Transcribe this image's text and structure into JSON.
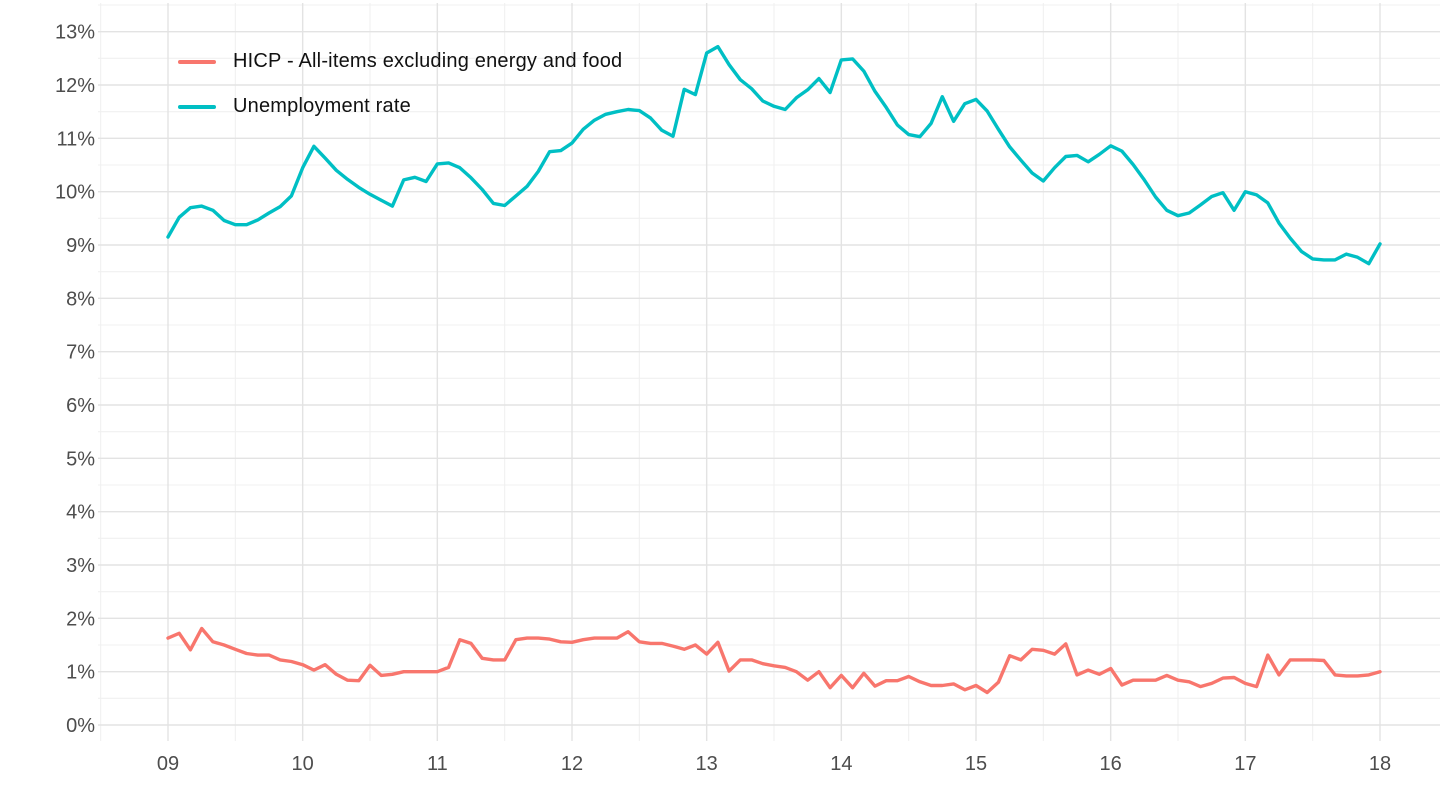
{
  "chart_data": {
    "type": "line",
    "title": "",
    "xlabel": "",
    "ylabel": "",
    "x_axis": {
      "freq": "monthly",
      "start": "2009-01",
      "end": "2018-01",
      "tick_labels": [
        "09",
        "10",
        "11",
        "12",
        "13",
        "14",
        "15",
        "16",
        "17",
        "18"
      ],
      "tick_month_index": [
        0,
        12,
        24,
        36,
        48,
        60,
        72,
        84,
        96,
        108
      ]
    },
    "y_axis": {
      "tick_labels": [
        "0%",
        "1%",
        "2%",
        "3%",
        "4%",
        "5%",
        "6%",
        "7%",
        "8%",
        "9%",
        "10%",
        "11%",
        "12%",
        "13%"
      ],
      "tick_values": [
        0,
        1,
        2,
        3,
        4,
        5,
        6,
        7,
        8,
        9,
        10,
        11,
        12,
        13
      ],
      "ylim": [
        0,
        13.5
      ],
      "minor_grid_step": 0.5
    },
    "grid": "on",
    "legend_position": "top-left-inside",
    "colors": {
      "grid_major": "#e3e3e3",
      "grid_minor": "#f0f0f0",
      "axis_text": "#4d4d4d",
      "legend_text": "#111111"
    },
    "series": [
      {
        "name": "HICP - All-items excluding energy and food",
        "color": "#F8766D",
        "values": [
          1.63,
          1.72,
          1.41,
          1.81,
          1.56,
          1.5,
          1.42,
          1.34,
          1.31,
          1.31,
          1.22,
          1.19,
          1.13,
          1.03,
          1.13,
          0.95,
          0.84,
          0.83,
          1.12,
          0.93,
          0.95,
          1.0,
          1.0,
          1.0,
          1.0,
          1.08,
          1.6,
          1.53,
          1.25,
          1.22,
          1.22,
          1.6,
          1.63,
          1.63,
          1.61,
          1.56,
          1.55,
          1.6,
          1.63,
          1.63,
          1.63,
          1.75,
          1.56,
          1.53,
          1.53,
          1.48,
          1.42,
          1.5,
          1.33,
          1.55,
          1.01,
          1.22,
          1.22,
          1.15,
          1.11,
          1.08,
          1.0,
          0.84,
          1.0,
          0.7,
          0.93,
          0.7,
          0.97,
          0.73,
          0.83,
          0.83,
          0.91,
          0.81,
          0.74,
          0.74,
          0.77,
          0.66,
          0.74,
          0.61,
          0.8,
          1.3,
          1.22,
          1.42,
          1.4,
          1.33,
          1.52,
          0.94,
          1.03,
          0.95,
          1.06,
          0.75,
          0.84,
          0.84,
          0.84,
          0.93,
          0.84,
          0.81,
          0.72,
          0.78,
          0.88,
          0.89,
          0.78,
          0.72,
          1.31,
          0.94,
          1.22,
          1.22,
          1.22,
          1.21,
          0.94,
          0.92,
          0.92,
          0.94,
          1.0
        ]
      },
      {
        "name": "Unemployment rate",
        "color": "#00BFC4",
        "values": [
          9.15,
          9.52,
          9.7,
          9.73,
          9.65,
          9.46,
          9.38,
          9.38,
          9.47,
          9.6,
          9.72,
          9.92,
          10.45,
          10.85,
          10.63,
          10.4,
          10.23,
          10.08,
          9.95,
          9.84,
          9.73,
          10.22,
          10.27,
          10.19,
          10.52,
          10.54,
          10.45,
          10.26,
          10.04,
          9.78,
          9.74,
          9.92,
          10.1,
          10.38,
          10.75,
          10.77,
          10.91,
          11.17,
          11.34,
          11.45,
          11.5,
          11.54,
          11.52,
          11.38,
          11.15,
          11.04,
          11.92,
          11.82,
          12.6,
          12.72,
          12.38,
          12.1,
          11.93,
          11.7,
          11.6,
          11.54,
          11.76,
          11.91,
          12.12,
          11.86,
          12.47,
          12.49,
          12.26,
          11.88,
          11.58,
          11.25,
          11.07,
          11.03,
          11.28,
          11.78,
          11.32,
          11.65,
          11.73,
          11.51,
          11.17,
          10.84,
          10.59,
          10.35,
          10.2,
          10.45,
          10.66,
          10.68,
          10.56,
          10.7,
          10.86,
          10.76,
          10.51,
          10.22,
          9.9,
          9.65,
          9.55,
          9.6,
          9.75,
          9.91,
          9.98,
          9.65,
          10.0,
          9.94,
          9.79,
          9.41,
          9.13,
          8.88,
          8.74,
          8.72,
          8.72,
          8.83,
          8.77,
          8.65,
          9.02
        ]
      }
    ]
  }
}
